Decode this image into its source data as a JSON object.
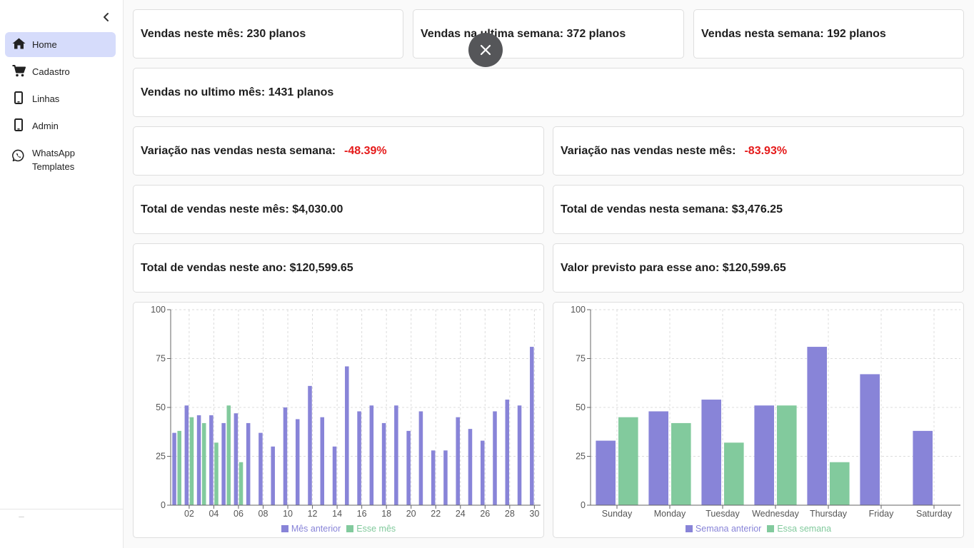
{
  "sidebar": {
    "items": [
      {
        "label": "Home",
        "icon": "home-icon",
        "active": true
      },
      {
        "label": "Cadastro",
        "icon": "cart-icon"
      },
      {
        "label": "Linhas",
        "icon": "phone-icon"
      },
      {
        "label": "Admin",
        "icon": "phone-icon"
      },
      {
        "label": "WhatsApp Templates",
        "icon": "whatsapp-icon"
      }
    ]
  },
  "stats": {
    "month_sales": "Vendas neste mês: 230 planos",
    "last_week_sales": "Vendas na ultima semana: 372 planos",
    "week_sales": "Vendas nesta semana: 192 planos",
    "last_month_sales": "Vendas no ultimo mês: 1431 planos",
    "week_variation_label": "Variação nas vendas nesta semana:",
    "week_variation_value": "-48.39%",
    "month_variation_label": "Variação nas vendas neste mês:",
    "month_variation_value": "-83.93%",
    "month_total": "Total de vendas neste mês: $4,030.00",
    "week_total": "Total de vendas nesta semana: $3,476.25",
    "year_total": "Total de vendas neste ano: $120,599.65",
    "year_forecast": "Valor previsto para esse ano: $120,599.65"
  },
  "colors": {
    "series_previous": "#8884d8",
    "series_current": "#82ca9d",
    "negative": "#e51b1b"
  },
  "chart_data": [
    {
      "type": "bar",
      "x": [
        "01",
        "02",
        "03",
        "04",
        "05",
        "06",
        "07",
        "08",
        "09",
        "10",
        "11",
        "12",
        "13",
        "14",
        "15",
        "16",
        "17",
        "18",
        "19",
        "20",
        "21",
        "22",
        "23",
        "24",
        "25",
        "26",
        "27",
        "28",
        "29",
        "30"
      ],
      "xticks": [
        "02",
        "04",
        "06",
        "08",
        "10",
        "12",
        "14",
        "16",
        "18",
        "20",
        "22",
        "24",
        "26",
        "28",
        "30"
      ],
      "yticks": [
        0,
        25,
        50,
        75,
        100
      ],
      "ylim": [
        0,
        100
      ],
      "grid": true,
      "legend": "bottom",
      "series": [
        {
          "name": "Mês anterior",
          "values": [
            37,
            51,
            46,
            46,
            42,
            47,
            42,
            37,
            30,
            50,
            44,
            61,
            45,
            30,
            71,
            48,
            51,
            42,
            51,
            38,
            48,
            28,
            28,
            45,
            39,
            33,
            48,
            54,
            51,
            81
          ]
        },
        {
          "name": "Esse mês",
          "values": [
            38,
            45,
            42,
            32,
            51,
            22,
            null,
            null,
            null,
            null,
            null,
            null,
            null,
            null,
            null,
            null,
            null,
            null,
            null,
            null,
            null,
            null,
            null,
            null,
            null,
            null,
            null,
            null,
            null,
            null
          ]
        }
      ]
    },
    {
      "type": "bar",
      "categories": [
        "Sunday",
        "Monday",
        "Tuesday",
        "Wednesday",
        "Thursday",
        "Friday",
        "Saturday"
      ],
      "yticks": [
        0,
        25,
        50,
        75,
        100
      ],
      "ylim": [
        0,
        100
      ],
      "grid": true,
      "legend": "bottom",
      "series": [
        {
          "name": "Semana anterior",
          "values": [
            33,
            48,
            54,
            51,
            81,
            67,
            38
          ]
        },
        {
          "name": "Essa semana",
          "values": [
            45,
            42,
            32,
            51,
            22,
            null,
            null
          ]
        }
      ]
    }
  ]
}
